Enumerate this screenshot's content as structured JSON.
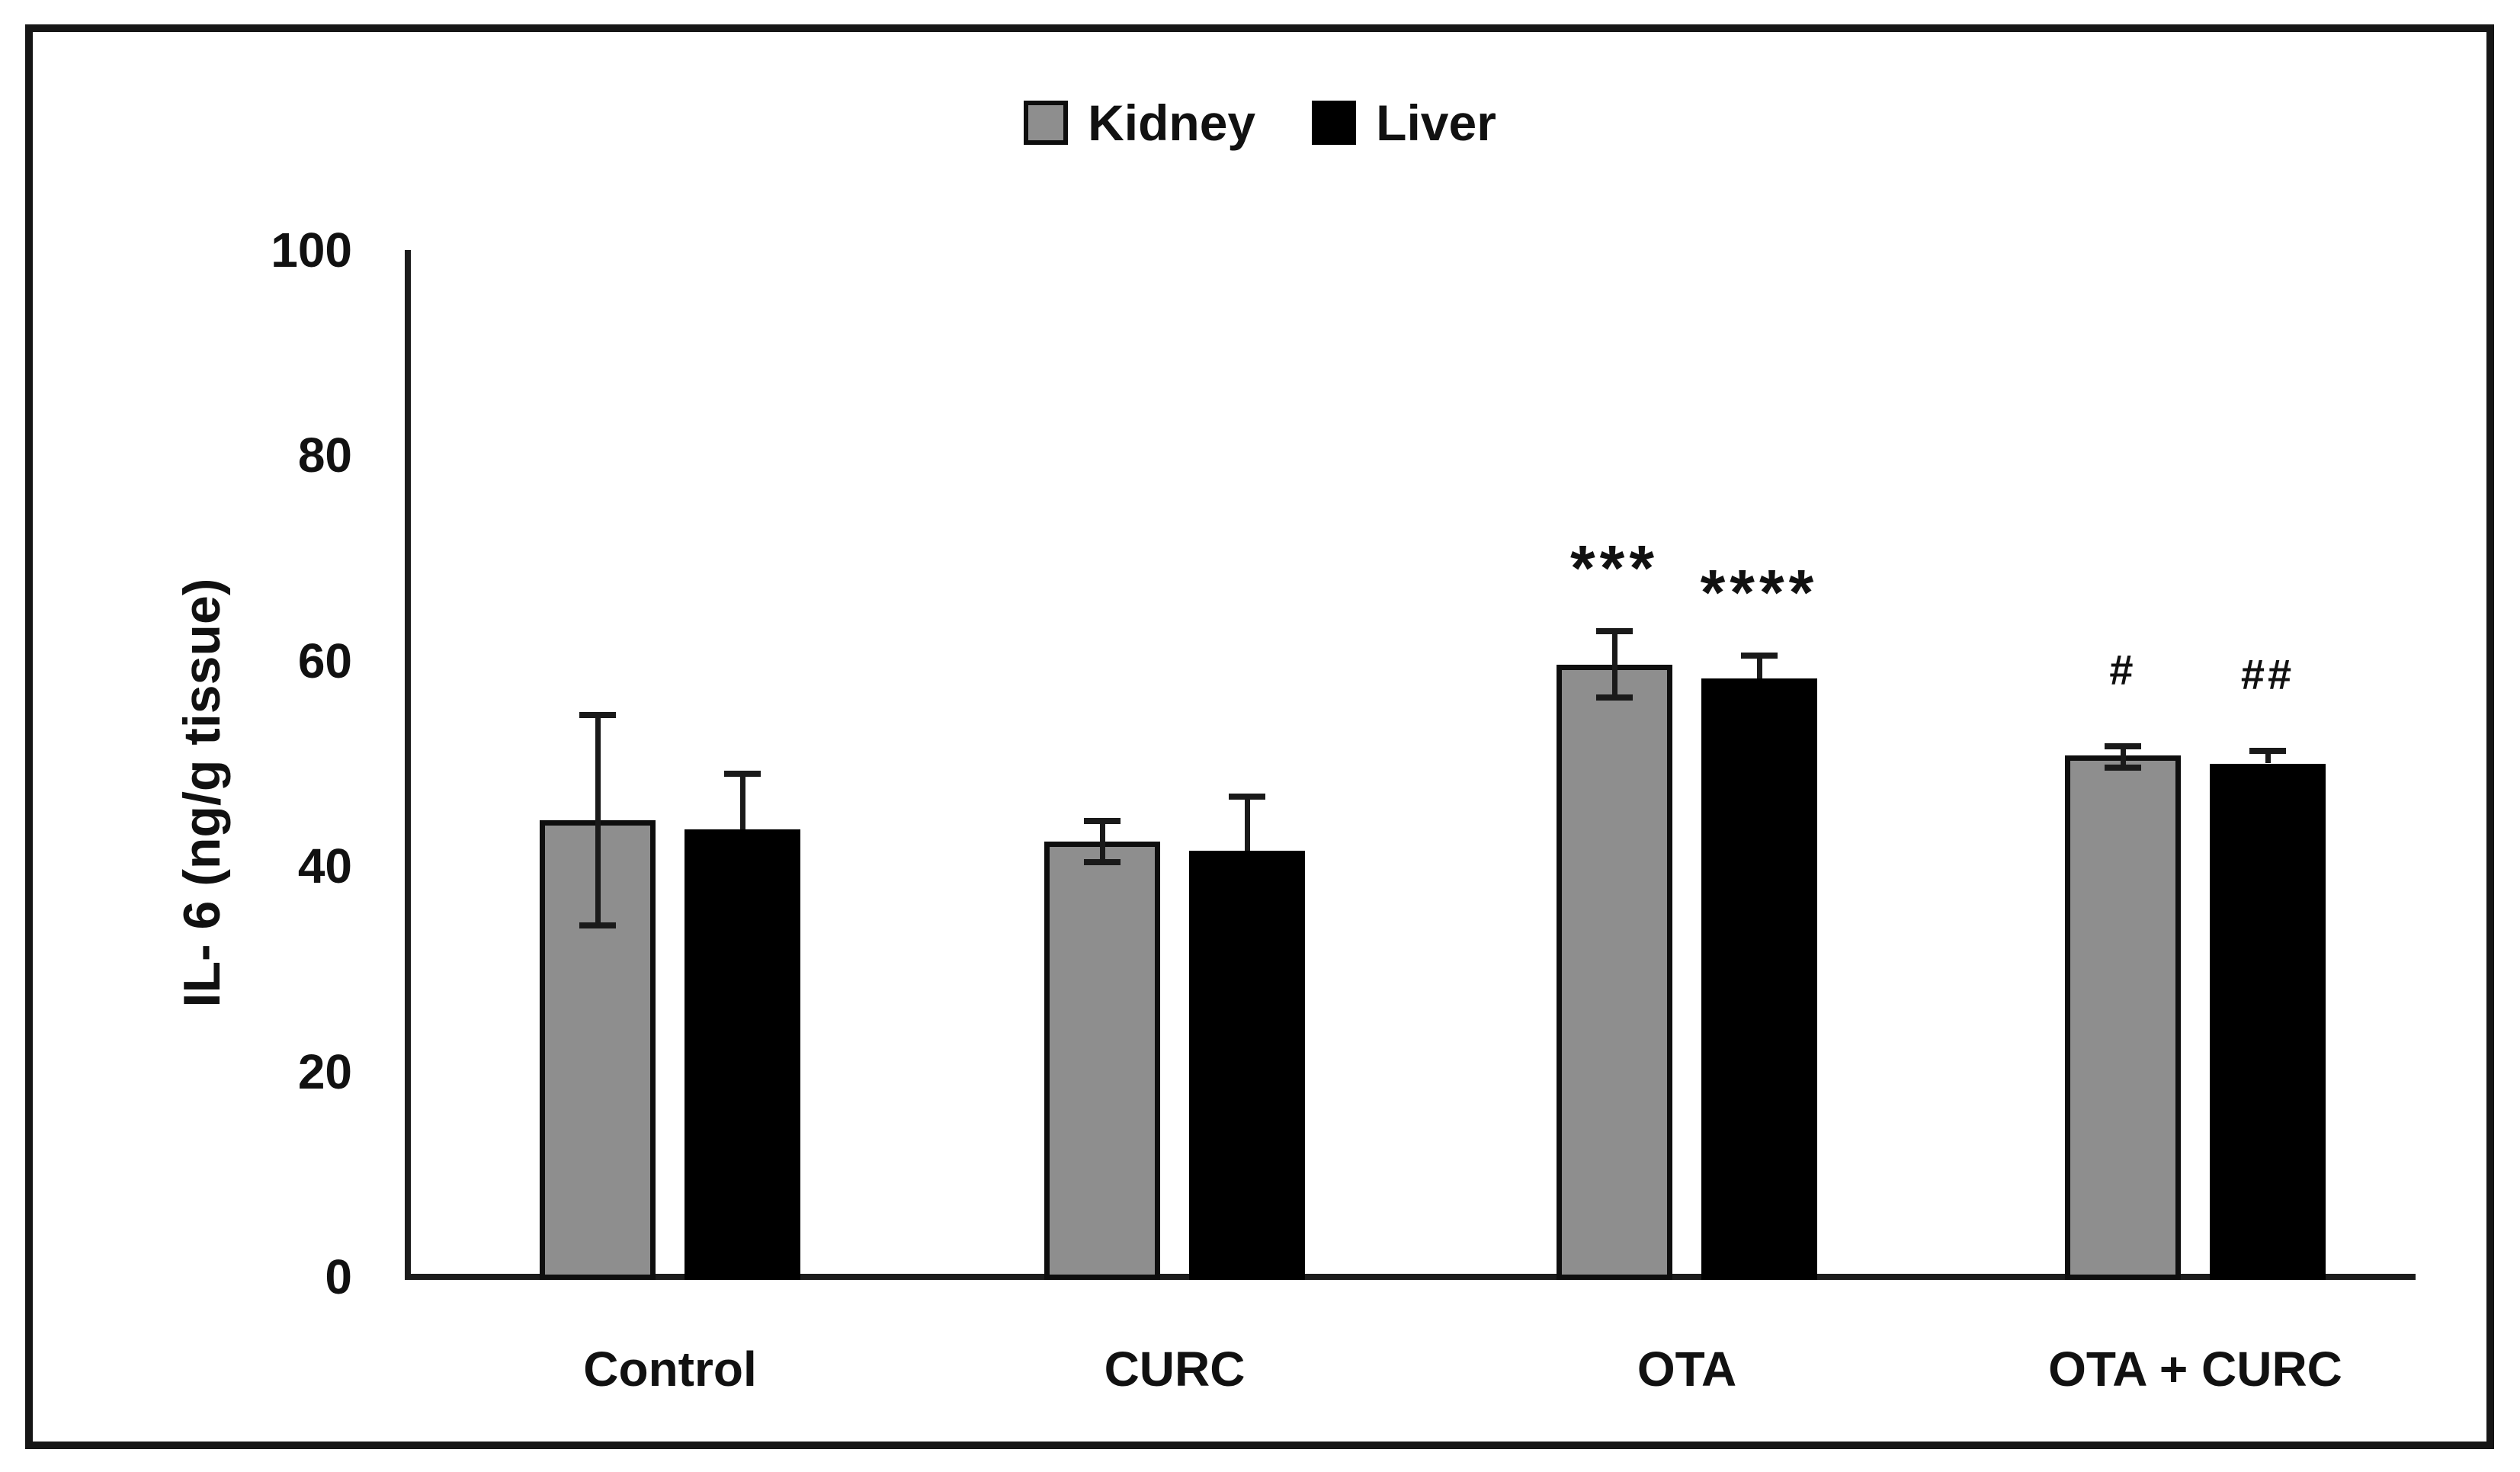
{
  "chart_data": {
    "type": "bar",
    "title": "",
    "ylabel": "IL- 6 (ng/g tissue)",
    "xlabel": "",
    "ylim": [
      0,
      100
    ],
    "yticks": [
      0,
      20,
      40,
      60,
      80,
      100
    ],
    "grid": false,
    "legend_position": "top-center",
    "categories": [
      "Control",
      "CURC",
      "OTA",
      "OTA + CURC"
    ],
    "series": [
      {
        "name": "Kidney",
        "color": "#8e8e8e",
        "values": [
          44.5,
          42.4,
          59.6,
          50.8
        ],
        "err_up": [
          10.2,
          2.0,
          3.3,
          0.9
        ],
        "err_down": [
          10.3,
          2.0,
          3.2,
          1.2
        ],
        "annotations": [
          "",
          "",
          "***",
          "#"
        ]
      },
      {
        "name": "Liver",
        "color": "#000000",
        "values": [
          43.6,
          41.5,
          58.3,
          50.0
        ],
        "err_up": [
          5.4,
          5.3,
          2.2,
          1.2
        ],
        "err_down": [
          null,
          null,
          null,
          null
        ],
        "annotations": [
          "",
          "",
          "****",
          "##"
        ]
      }
    ]
  }
}
